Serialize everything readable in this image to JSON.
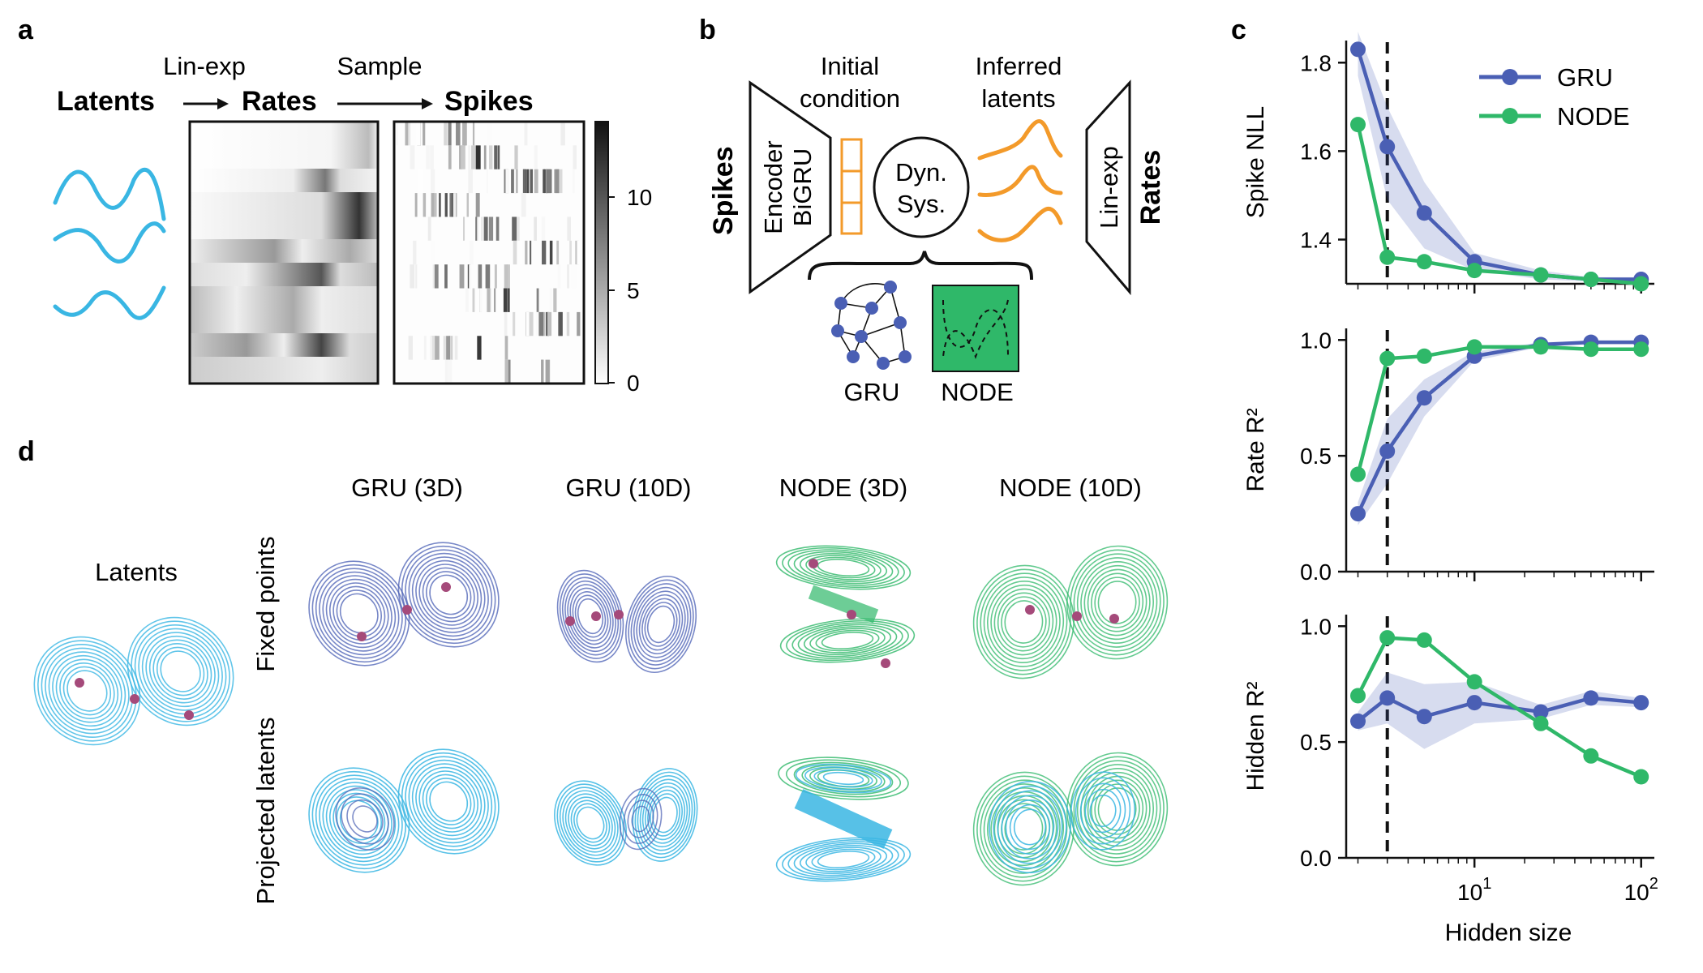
{
  "panel_labels": {
    "a": "a",
    "b": "b",
    "c": "c",
    "d": "d"
  },
  "panel_a": {
    "step1": "Lin-exp",
    "step2": "Sample",
    "latents": "Latents",
    "rates": "Rates",
    "spikes": "Spikes",
    "colorbar_ticks": [
      "10",
      "5",
      "0"
    ],
    "colors": {
      "latent": "#39b6e3"
    }
  },
  "panel_b": {
    "spikes": "Spikes",
    "encoder_line1": "Encoder",
    "encoder_line2": "BiGRU",
    "ic_line1": "Initial",
    "ic_line2": "condition",
    "dyn_line1": "Dyn.",
    "dyn_line2": "Sys.",
    "inf_line1": "Inferred",
    "inf_line2": "latents",
    "readout": "Lin-exp",
    "rates": "Rates",
    "gru": "GRU",
    "node": "NODE",
    "colors": {
      "orange": "#f39a2a",
      "gru": "#4a5fb4",
      "node": "#2fb869"
    }
  },
  "panel_d": {
    "latents_title": "Latents",
    "columns": [
      "GRU (3D)",
      "GRU (10D)",
      "NODE (3D)",
      "NODE (10D)"
    ],
    "rows": [
      "Fixed points",
      "Projected latents"
    ],
    "colors": {
      "gru": "#4a5fb4",
      "node": "#2fb869",
      "latent": "#39b6e3",
      "fixed_point": "#a54a7a"
    }
  },
  "chart_data": [
    {
      "type": "line",
      "x": [
        2,
        3,
        5,
        10,
        25,
        50,
        100
      ],
      "xscale": "log",
      "xlim": [
        1.7,
        120
      ],
      "ylabel": "Spike NLL",
      "ylim": [
        1.3,
        1.85
      ],
      "yticks": [
        1.4,
        1.6,
        1.8
      ],
      "vline_x": 3,
      "legend": "top-right",
      "series": [
        {
          "name": "GRU",
          "color": "#4a5fb4",
          "values": [
            1.83,
            1.61,
            1.46,
            1.35,
            1.32,
            1.31,
            1.31
          ],
          "band_lo": [
            1.77,
            1.49,
            1.38,
            1.33,
            1.31,
            1.305,
            1.305
          ],
          "band_hi": [
            1.87,
            1.7,
            1.53,
            1.37,
            1.33,
            1.315,
            1.315
          ]
        },
        {
          "name": "NODE",
          "color": "#2fb869",
          "values": [
            1.66,
            1.36,
            1.35,
            1.33,
            1.32,
            1.31,
            1.3
          ]
        }
      ]
    },
    {
      "type": "line",
      "x": [
        2,
        3,
        5,
        10,
        25,
        50,
        100
      ],
      "xscale": "log",
      "xlim": [
        1.7,
        120
      ],
      "ylabel": "Rate R²",
      "ylim": [
        0,
        1.05
      ],
      "yticks": [
        0.0,
        0.5,
        1.0
      ],
      "vline_x": 3,
      "series": [
        {
          "name": "GRU",
          "color": "#4a5fb4",
          "values": [
            0.25,
            0.52,
            0.75,
            0.93,
            0.98,
            0.99,
            0.99
          ],
          "band_lo": [
            0.2,
            0.38,
            0.67,
            0.91,
            0.97,
            0.985,
            0.985
          ],
          "band_hi": [
            0.3,
            0.66,
            0.83,
            0.95,
            0.99,
            0.995,
            0.995
          ]
        },
        {
          "name": "NODE",
          "color": "#2fb869",
          "values": [
            0.42,
            0.92,
            0.93,
            0.97,
            0.97,
            0.96,
            0.96
          ]
        }
      ]
    },
    {
      "type": "line",
      "x": [
        2,
        3,
        5,
        10,
        25,
        50,
        100
      ],
      "xscale": "log",
      "xlim": [
        1.7,
        120
      ],
      "ylabel": "Hidden R²",
      "xlabel": "Hidden size",
      "ylim": [
        0,
        1.05
      ],
      "yticks": [
        0.0,
        0.5,
        1.0
      ],
      "xtick_labels": [
        {
          "base": "10",
          "exp": "1",
          "x": 10
        },
        {
          "base": "10",
          "exp": "2",
          "x": 100
        }
      ],
      "vline_x": 3,
      "series": [
        {
          "name": "GRU",
          "color": "#4a5fb4",
          "values": [
            0.59,
            0.69,
            0.61,
            0.67,
            0.63,
            0.69,
            0.67
          ],
          "band_lo": [
            0.55,
            0.58,
            0.47,
            0.58,
            0.6,
            0.66,
            0.65
          ],
          "band_hi": [
            0.63,
            0.8,
            0.75,
            0.76,
            0.66,
            0.72,
            0.69
          ]
        },
        {
          "name": "NODE",
          "color": "#2fb869",
          "values": [
            0.7,
            0.95,
            0.94,
            0.76,
            0.58,
            0.44,
            0.35
          ]
        }
      ]
    }
  ]
}
